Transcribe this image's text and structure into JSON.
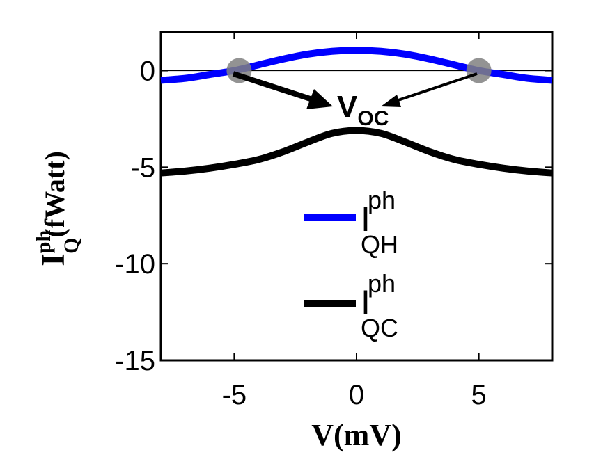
{
  "chart_data": {
    "type": "line",
    "xlabel": "V(mV)",
    "ylabel": {
      "base": "I",
      "sup": "ph",
      "sub": "Q",
      "unit": "(fWatt)"
    },
    "xlim": [
      -8,
      8
    ],
    "ylim": [
      -15,
      2
    ],
    "xticks": [
      -5,
      0,
      5
    ],
    "xtick_labels": [
      "-5",
      "0",
      "5"
    ],
    "yticks": [
      0,
      -5,
      -10,
      -15
    ],
    "ytick_labels": [
      "0",
      "-5",
      "-10",
      "-15"
    ],
    "grid": false,
    "zero_line": true,
    "legend_position": "center-right",
    "series": [
      {
        "key": "qh",
        "label_base": "I",
        "label_sup": "ph",
        "label_sub": "QH",
        "color": "#0000ff",
        "x": [
          -8,
          -7,
          -6,
          -5,
          -4,
          -3,
          -2,
          -1,
          0,
          1,
          2,
          3,
          4,
          5,
          6,
          7,
          8
        ],
        "y": [
          -0.5,
          -0.4,
          -0.2,
          0.0,
          0.3,
          0.6,
          0.85,
          1.0,
          1.05,
          1.0,
          0.85,
          0.6,
          0.3,
          0.0,
          -0.2,
          -0.4,
          -0.5
        ]
      },
      {
        "key": "qc",
        "label_base": "I",
        "label_sup": "ph",
        "label_sub": "QC",
        "color": "#000000",
        "x": [
          -8,
          -7,
          -6,
          -5,
          -4,
          -3,
          -2,
          -1,
          0,
          1,
          2,
          3,
          4,
          5,
          6,
          7,
          8
        ],
        "y": [
          -5.3,
          -5.2,
          -5.05,
          -4.85,
          -4.6,
          -4.2,
          -3.7,
          -3.25,
          -3.1,
          -3.25,
          -3.7,
          -4.2,
          -4.6,
          -4.85,
          -5.05,
          -5.2,
          -5.3
        ]
      }
    ],
    "markers": [
      {
        "x": -4.8,
        "y": 0.0,
        "color": "#808080"
      },
      {
        "x": 5.0,
        "y": 0.0,
        "color": "#808080"
      }
    ],
    "annotation": {
      "base": "V",
      "sub": "OC"
    }
  }
}
